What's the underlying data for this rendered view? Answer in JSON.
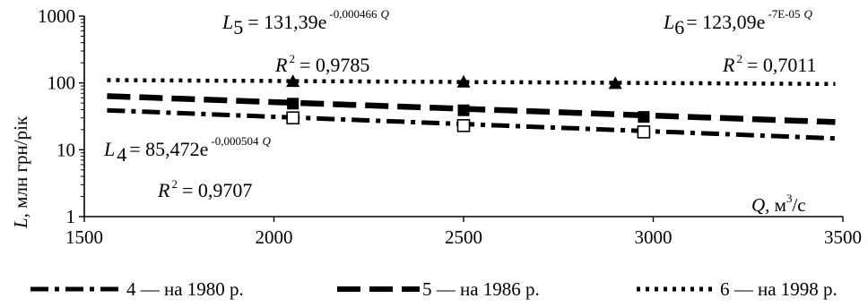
{
  "chart_data": {
    "type": "scatter",
    "x_axis": {
      "label_var": "Q",
      "label_unit_pre": ", м",
      "label_unit_sup": "3",
      "label_unit_post": "/с",
      "min": 1500,
      "max": 3500,
      "ticks": [
        1500,
        2000,
        2500,
        3000,
        3500
      ],
      "tick_labels": [
        "1500",
        "2000",
        "2500",
        "3000",
        "3500"
      ]
    },
    "y_axis": {
      "label_var": "L",
      "label_unit": ", млн грн/рік",
      "scale": "log",
      "min": 1,
      "max": 1000,
      "ticks": [
        1,
        10,
        100,
        1000
      ],
      "tick_labels": [
        "1",
        "10",
        "100",
        "1000"
      ]
    },
    "grid": false,
    "legend_position": "bottom",
    "series": [
      {
        "key": "s4",
        "name": "4 — на 1980 р.",
        "marker": "open-square",
        "line_style": "dash-dot",
        "points": [
          {
            "x": 2050,
            "y": 30
          },
          {
            "x": 2500,
            "y": 23
          },
          {
            "x": 2975,
            "y": 18.5
          }
        ],
        "trend": {
          "a": 85.472,
          "b": 0.000504,
          "x_from": 1560,
          "x_to": 3480
        },
        "equation": {
          "lhs": "L",
          "sub": "4",
          "rhs": "= 85,472e",
          "exp": "-0,000504",
          "var": "Q"
        },
        "r2": {
          "pre": "R",
          "sup": "2",
          "post": "= 0,9707"
        }
      },
      {
        "key": "s5",
        "name": "5 — на 1986 р.",
        "marker": "filled-square",
        "line_style": "long-dash",
        "points": [
          {
            "x": 2050,
            "y": 49
          },
          {
            "x": 2500,
            "y": 39
          },
          {
            "x": 2975,
            "y": 31
          }
        ],
        "trend": {
          "a": 131.39,
          "b": 0.000466,
          "x_from": 1560,
          "x_to": 3480
        },
        "equation": {
          "lhs": "L",
          "sub": "5",
          "rhs": "= 131,39e",
          "exp": "-0,000466",
          "var": "Q"
        },
        "r2": {
          "pre": "R",
          "sup": "2",
          "post": "= 0,9785"
        }
      },
      {
        "key": "s6",
        "name": "6 — на 1998 р.",
        "marker": "filled-triangle",
        "line_style": "dotted",
        "points": [
          {
            "x": 2050,
            "y": 105
          },
          {
            "x": 2500,
            "y": 103
          },
          {
            "x": 2900,
            "y": 98
          }
        ],
        "trend": {
          "a": 123.09,
          "b": 7e-05,
          "x_from": 1560,
          "x_to": 3480
        },
        "equation": {
          "lhs": "L",
          "sub": "6",
          "rhs": "= 123,09e",
          "exp": "-7E-05",
          "var": "Q"
        },
        "r2": {
          "pre": "R",
          "sup": "2",
          "post": "= 0,7011"
        }
      }
    ]
  }
}
